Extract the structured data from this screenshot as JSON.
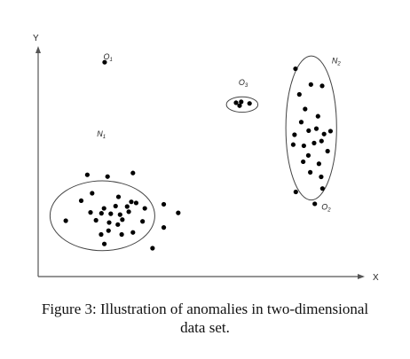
{
  "chart_data": {
    "type": "scatter",
    "title": "",
    "xlabel": "X",
    "ylabel": "Y",
    "xlim": [
      0,
      100
    ],
    "ylim": [
      0,
      100
    ],
    "grid": false,
    "regions": [
      {
        "id": "n1",
        "label": "N",
        "sub": "1",
        "cx": 20,
        "cy": 27,
        "rx": 16.3,
        "ry": 15.5
      },
      {
        "id": "n2",
        "label": "N",
        "sub": "2",
        "cx": 85,
        "cy": 66,
        "rx": 7.9,
        "ry": 32
      },
      {
        "id": "o3",
        "label": "O",
        "sub": "3",
        "cx": 63.5,
        "cy": 76.4,
        "rx": 4.9,
        "ry": 3.4
      }
    ],
    "labels": [
      {
        "id": "o1",
        "label": "O",
        "sub": "1",
        "x": 20.3,
        "y": 96.5
      },
      {
        "id": "o2",
        "label": "O",
        "sub": "2",
        "x": 88.2,
        "y": 29.8
      },
      {
        "id": "o3",
        "label": "O",
        "sub": "3",
        "x": 62.4,
        "y": 85.0
      },
      {
        "id": "n1",
        "label": "N",
        "sub": "1",
        "x": 18.3,
        "y": 62.3
      },
      {
        "id": "n2",
        "label": "N",
        "sub": "2",
        "x": 91.4,
        "y": 94.7
      }
    ],
    "series": [
      {
        "name": "",
        "points": [
          [
            20.7,
            95.2
          ],
          [
            86.1,
            32.3
          ],
          [
            61.6,
            77.2
          ],
          [
            63.2,
            77.6
          ],
          [
            62.7,
            75.9
          ],
          [
            65.8,
            76.9
          ],
          [
            15.3,
            45.2
          ],
          [
            21.6,
            44.4
          ],
          [
            29.5,
            46.0
          ],
          [
            16.8,
            37.0
          ],
          [
            13.4,
            33.7
          ],
          [
            25.0,
            35.4
          ],
          [
            16.3,
            28.5
          ],
          [
            19.7,
            28.1
          ],
          [
            22.6,
            27.9
          ],
          [
            25.5,
            27.5
          ],
          [
            28.2,
            28.8
          ],
          [
            30.5,
            32.7
          ],
          [
            29.0,
            33.2
          ],
          [
            33.2,
            30.3
          ],
          [
            27.7,
            31.1
          ],
          [
            39.1,
            32.1
          ],
          [
            43.6,
            28.3
          ],
          [
            20.5,
            30.3
          ],
          [
            18.0,
            25.0
          ],
          [
            22.1,
            24.0
          ],
          [
            24.8,
            23.1
          ],
          [
            26.2,
            25.3
          ],
          [
            32.5,
            24.5
          ],
          [
            21.9,
            20.4
          ],
          [
            26.0,
            18.7
          ],
          [
            29.5,
            19.6
          ],
          [
            39.1,
            21.8
          ],
          [
            20.6,
            14.5
          ],
          [
            35.6,
            12.6
          ],
          [
            8.6,
            24.8
          ],
          [
            19.6,
            18.7
          ],
          [
            24.1,
            31.3
          ],
          [
            80.1,
            92.3
          ],
          [
            81.3,
            80.9
          ],
          [
            84.9,
            85.3
          ],
          [
            88.4,
            84.7
          ],
          [
            83.1,
            74.4
          ],
          [
            81.9,
            68.6
          ],
          [
            87.1,
            71.2
          ],
          [
            79.8,
            63.0
          ],
          [
            84.2,
            64.8
          ],
          [
            86.6,
            65.7
          ],
          [
            89.0,
            63.3
          ],
          [
            91.0,
            64.6
          ],
          [
            79.4,
            58.6
          ],
          [
            82.7,
            58.1
          ],
          [
            85.9,
            59.3
          ],
          [
            88.2,
            60.2
          ],
          [
            84.1,
            53.8
          ],
          [
            87.4,
            50.1
          ],
          [
            90.1,
            55.7
          ],
          [
            84.7,
            46.3
          ],
          [
            88.1,
            44.3
          ],
          [
            88.5,
            39.1
          ],
          [
            80.2,
            37.6
          ],
          [
            82.5,
            51.0
          ]
        ]
      }
    ]
  },
  "caption": {
    "line1": "Figure 3: Illustration of anomalies in two-dimensional",
    "line2": "data set."
  }
}
